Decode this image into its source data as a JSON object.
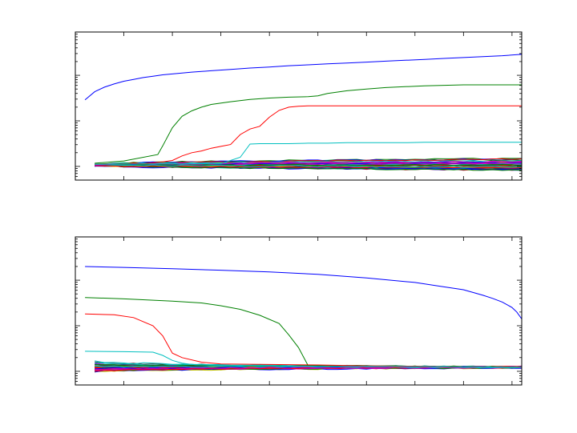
{
  "figure": {
    "background": "#ffffff"
  },
  "chart_data": [
    {
      "type": "line",
      "yscale": "log",
      "xlim": [
        0,
        92
      ],
      "ylim_log10": [
        -0.3,
        2.95
      ],
      "minor_ticks_per_decade": true,
      "grid": false,
      "x_major_ticks": [
        10,
        20,
        30,
        40,
        50,
        60,
        70,
        80,
        90
      ],
      "y_major_decades": [
        0,
        1,
        2
      ],
      "noise_band": {
        "count": 40,
        "start_log10": 0.03,
        "end_min_log10": -0.08,
        "end_max_log10": 0.18,
        "colors": [
          "#0000ff",
          "#008000",
          "#ff0000",
          "#00bfbf",
          "#bf00bf",
          "#bfbf00",
          "#404040"
        ]
      },
      "series": [
        {
          "color": "#0000ff",
          "x": [
            2,
            4,
            6,
            8,
            10,
            12,
            14,
            16,
            18,
            20,
            24,
            28,
            32,
            36,
            40,
            44,
            48,
            52,
            56,
            60,
            64,
            68,
            72,
            76,
            80,
            84,
            88,
            92
          ],
          "log10_y": [
            1.46,
            1.64,
            1.74,
            1.81,
            1.87,
            1.91,
            1.95,
            1.98,
            2.01,
            2.03,
            2.07,
            2.1,
            2.13,
            2.16,
            2.18,
            2.21,
            2.23,
            2.25,
            2.27,
            2.29,
            2.31,
            2.33,
            2.35,
            2.37,
            2.39,
            2.41,
            2.43,
            2.46
          ]
        },
        {
          "color": "#008000",
          "x": [
            4,
            10,
            17,
            18,
            20,
            22,
            24,
            26,
            28,
            32,
            36,
            40,
            44,
            48,
            50,
            52,
            56,
            60,
            64,
            68,
            72,
            76,
            80,
            84,
            88,
            92
          ],
          "log10_y": [
            0.07,
            0.12,
            0.26,
            0.45,
            0.85,
            1.1,
            1.22,
            1.3,
            1.36,
            1.42,
            1.47,
            1.5,
            1.52,
            1.53,
            1.55,
            1.6,
            1.66,
            1.7,
            1.73,
            1.75,
            1.77,
            1.78,
            1.79,
            1.79,
            1.79,
            1.79
          ]
        },
        {
          "color": "#ff0000",
          "x": [
            4,
            14,
            18,
            20,
            22,
            24,
            26,
            28,
            30,
            32,
            34,
            36,
            38,
            40,
            42,
            44,
            46,
            48,
            50,
            52,
            56,
            60,
            64,
            68,
            72,
            76,
            80,
            84,
            88,
            92
          ],
          "log10_y": [
            0.05,
            0.06,
            0.1,
            0.13,
            0.23,
            0.3,
            0.34,
            0.4,
            0.44,
            0.48,
            0.7,
            0.82,
            0.88,
            1.08,
            1.23,
            1.3,
            1.32,
            1.33,
            1.33,
            1.33,
            1.33,
            1.33,
            1.33,
            1.33,
            1.33,
            1.33,
            1.33,
            1.33,
            1.33,
            1.33
          ]
        },
        {
          "color": "#00bfbf",
          "x": [
            4,
            30,
            34,
            36,
            38,
            40,
            44,
            48,
            52,
            56,
            60,
            64,
            68,
            72,
            76,
            80,
            84,
            88,
            92
          ],
          "log10_y": [
            0.05,
            0.06,
            0.2,
            0.49,
            0.5,
            0.5,
            0.5,
            0.51,
            0.51,
            0.52,
            0.52,
            0.52,
            0.52,
            0.53,
            0.53,
            0.53,
            0.53,
            0.53,
            0.53
          ]
        }
      ]
    },
    {
      "type": "line",
      "yscale": "log",
      "xlim": [
        0,
        92
      ],
      "ylim_log10": [
        -0.3,
        2.95
      ],
      "minor_ticks_per_decade": true,
      "grid": false,
      "x_major_ticks": [
        10,
        20,
        30,
        40,
        50,
        60,
        70,
        80,
        90
      ],
      "y_major_decades": [
        0,
        1,
        2
      ],
      "noise_band": {
        "count": 40,
        "start_min_log10": -0.02,
        "start_max_log10": 0.22,
        "end_log10": 0.09,
        "colors": [
          "#0000ff",
          "#008000",
          "#ff0000",
          "#00bfbf",
          "#bf00bf",
          "#bfbf00",
          "#404040"
        ]
      },
      "series": [
        {
          "color": "#0000ff",
          "x": [
            2,
            10,
            20,
            30,
            40,
            50,
            60,
            70,
            75,
            80,
            84,
            86,
            88,
            90,
            91,
            92
          ],
          "log10_y": [
            2.3,
            2.28,
            2.25,
            2.22,
            2.18,
            2.13,
            2.05,
            1.95,
            1.87,
            1.79,
            1.67,
            1.6,
            1.52,
            1.4,
            1.3,
            1.15
          ]
        },
        {
          "color": "#008000",
          "x": [
            2,
            10,
            20,
            26,
            30,
            34,
            38,
            42,
            44,
            46,
            48,
            50,
            54,
            58,
            62,
            66,
            70,
            74,
            78,
            82,
            86,
            90,
            92
          ],
          "log10_y": [
            1.62,
            1.59,
            1.54,
            1.5,
            1.44,
            1.36,
            1.23,
            1.05,
            0.8,
            0.52,
            0.12,
            0.13,
            0.12,
            0.13,
            0.12,
            0.12,
            0.11,
            0.11,
            0.1,
            0.1,
            0.1,
            0.09,
            0.09
          ]
        },
        {
          "color": "#ff0000",
          "x": [
            2,
            8,
            12,
            16,
            18,
            20,
            22,
            26,
            30,
            40,
            50,
            60,
            70,
            80,
            92
          ],
          "log10_y": [
            1.26,
            1.24,
            1.18,
            1.0,
            0.78,
            0.4,
            0.3,
            0.2,
            0.16,
            0.15,
            0.14,
            0.12,
            0.11,
            0.1,
            0.09
          ]
        },
        {
          "color": "#00bfbf",
          "x": [
            2,
            10,
            16,
            18,
            20,
            22,
            24,
            26,
            30,
            40,
            50,
            60,
            70,
            80,
            92
          ],
          "log10_y": [
            0.44,
            0.43,
            0.42,
            0.35,
            0.24,
            0.18,
            0.15,
            0.14,
            0.13,
            0.12,
            0.11,
            0.11,
            0.1,
            0.1,
            0.09
          ]
        }
      ]
    }
  ]
}
